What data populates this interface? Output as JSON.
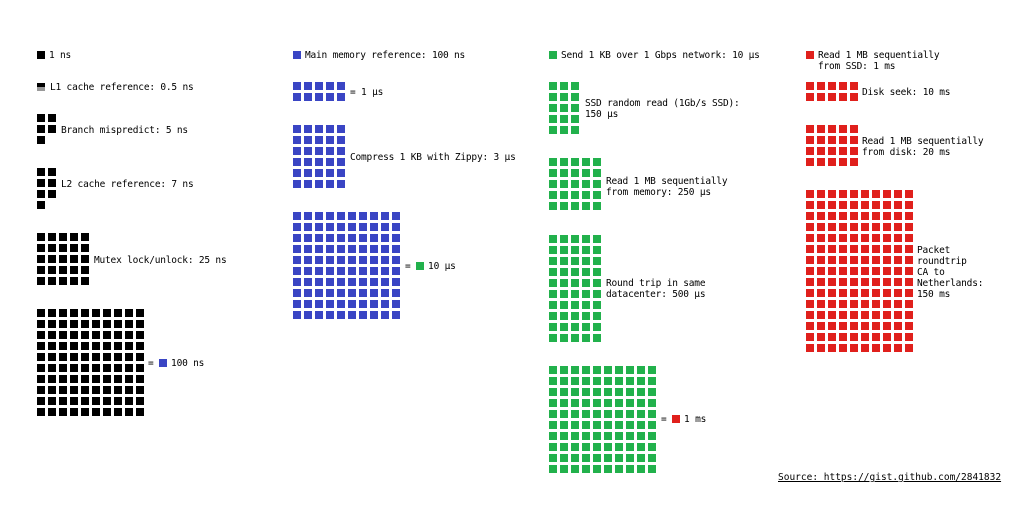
{
  "colors": {
    "ns": "#000000",
    "hundred_ns": "#3a45c4",
    "ten_us": "#22b14c",
    "ms": "#e0201c"
  },
  "legend": {
    "ns": "1 ns",
    "hundred_ns": "Main memory reference: 100 ns",
    "ten_us": "Send 1 KB over 1 Gbps network: 10 µs",
    "ms_line1": "Read 1 MB sequentially",
    "ms_line2": "from SSD: 1 ms"
  },
  "items": {
    "l1": "L1 cache reference: 0.5 ns",
    "branch": "Branch mispredict: 5 ns",
    "l2": "L2 cache reference: 7 ns",
    "mutex": "Mutex lock/unlock: 25 ns",
    "eq_100ns": "= ",
    "eq_100ns_val": "100 ns",
    "one_us": "= 1 µs",
    "zippy": "Compress 1 KB with Zippy: 3 µs",
    "eq_10us": "= ",
    "eq_10us_val": "10 µs",
    "ssd_line1": "SSD random read (1Gb/s SSD):",
    "ssd_line2": "150 µs",
    "mem_line1": "Read 1 MB sequentially",
    "mem_line2": "from memory: 250 µs",
    "dc_line1": "Round trip in same",
    "dc_line2": "datacenter: 500 µs",
    "eq_1ms": "= ",
    "eq_1ms_val": "1 ms",
    "disk_seek": "Disk seek: 10 ms",
    "disk_line1": "Read 1 MB sequentially",
    "disk_line2": "from disk: 20 ms",
    "packet_line1": "Packet",
    "packet_line2": "roundtrip",
    "packet_line3": "CA to",
    "packet_line4": "Netherlands:",
    "packet_line5": "150 ms"
  },
  "source": "Source: https://gist.github.com/2841832"
}
